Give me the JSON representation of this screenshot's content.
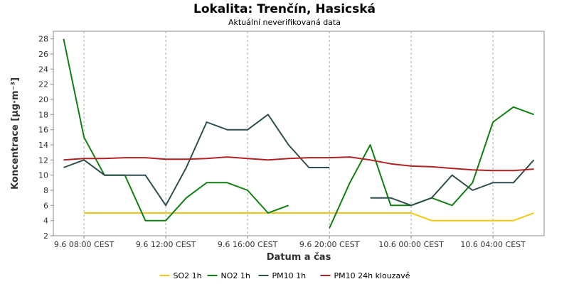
{
  "chart_data": {
    "type": "line",
    "title": "Lokalita: Trenčín, Hasicská",
    "subtitle": "Aktuální neverifikovaná data",
    "xlabel": "Datum a čas",
    "ylabel": "Koncentrace [µg·m⁻³]",
    "ylim": [
      2,
      29
    ],
    "yticks": [
      2,
      4,
      6,
      8,
      10,
      12,
      14,
      16,
      18,
      20,
      22,
      24,
      26,
      28
    ],
    "x_hours": [
      0,
      1,
      2,
      3,
      4,
      5,
      6,
      7,
      8,
      9,
      10,
      11,
      12,
      13,
      14,
      15,
      16,
      17,
      18,
      19,
      20,
      21,
      22,
      23
    ],
    "xlim": [
      -0.5,
      23.5
    ],
    "xticks": [
      {
        "hour": 1,
        "label": "9.6 08:00 CEST"
      },
      {
        "hour": 5,
        "label": "9.6 12:00 CEST"
      },
      {
        "hour": 9,
        "label": "9.6 16:00 CEST"
      },
      {
        "hour": 13,
        "label": "9.6 20:00 CEST"
      },
      {
        "hour": 17,
        "label": "10.6 00:00 CEST"
      },
      {
        "hour": 21,
        "label": "10.6 04:00 CEST"
      }
    ],
    "grid": true,
    "legend_position": "bottom",
    "series": [
      {
        "name": "SO2 1h",
        "color": "#f2c80f",
        "values": [
          null,
          5,
          5,
          5,
          5,
          5,
          5,
          5,
          5,
          5,
          5,
          5,
          5,
          5,
          5,
          5,
          5,
          5,
          4,
          4,
          4,
          4,
          4,
          5
        ]
      },
      {
        "name": "NO2 1h",
        "color": "#108010",
        "values": [
          28,
          15,
          10,
          10,
          4,
          4,
          7,
          9,
          9,
          8,
          5,
          6,
          null,
          3,
          9,
          14,
          6,
          6,
          7,
          6,
          9,
          17,
          19,
          18
        ]
      },
      {
        "name": "PM10 1h",
        "color": "#2f4f4f",
        "values": [
          11,
          12,
          10,
          10,
          10,
          6,
          11,
          17,
          16,
          16,
          18,
          14,
          11,
          11,
          null,
          7,
          7,
          6,
          7,
          10,
          8,
          9,
          9,
          12
        ]
      },
      {
        "name": "PM10 24h klouzavě",
        "color": "#b22222",
        "values": [
          12,
          12.2,
          12.2,
          12.3,
          12.3,
          12.1,
          12.1,
          12.2,
          12.4,
          12.2,
          12.0,
          12.2,
          12.3,
          12.3,
          12.4,
          12.0,
          11.5,
          11.2,
          11.1,
          10.9,
          10.7,
          10.6,
          10.6,
          10.8
        ]
      }
    ]
  }
}
